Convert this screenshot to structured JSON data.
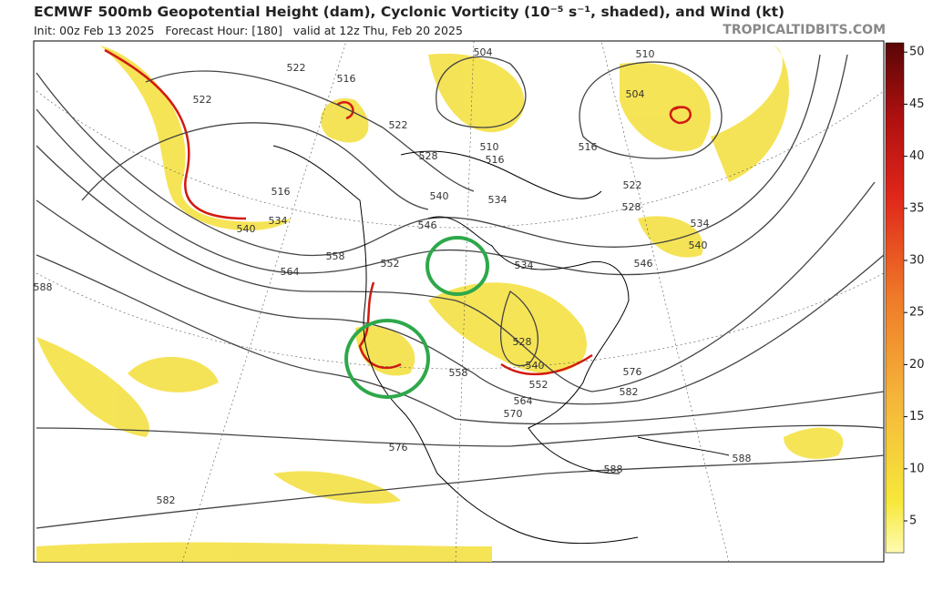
{
  "header": {
    "title": "ECMWF 500mb Geopotential Height (dam), Cyclonic Vorticity (10⁻⁵ s⁻¹, shaded), and Wind (kt)",
    "subtitle": "Init: 00z Feb 13 2025   Forecast Hour: [180]   valid at 12z Thu, Feb 20 2025",
    "source": "TROPICALTIDBITS.COM"
  },
  "colorbar": {
    "ticks": [
      5,
      10,
      15,
      20,
      25,
      30,
      35,
      40,
      45,
      50
    ]
  },
  "contour_labels": [
    "522",
    "516",
    "522",
    "522",
    "504",
    "510",
    "504",
    "516",
    "510",
    "516",
    "528",
    "540",
    "534",
    "546",
    "516",
    "534",
    "540",
    "558",
    "564",
    "552",
    "588",
    "534",
    "522",
    "528",
    "534",
    "540",
    "546",
    "528",
    "540",
    "552",
    "558",
    "564",
    "570",
    "576",
    "582",
    "576",
    "588",
    "588",
    "582"
  ]
}
